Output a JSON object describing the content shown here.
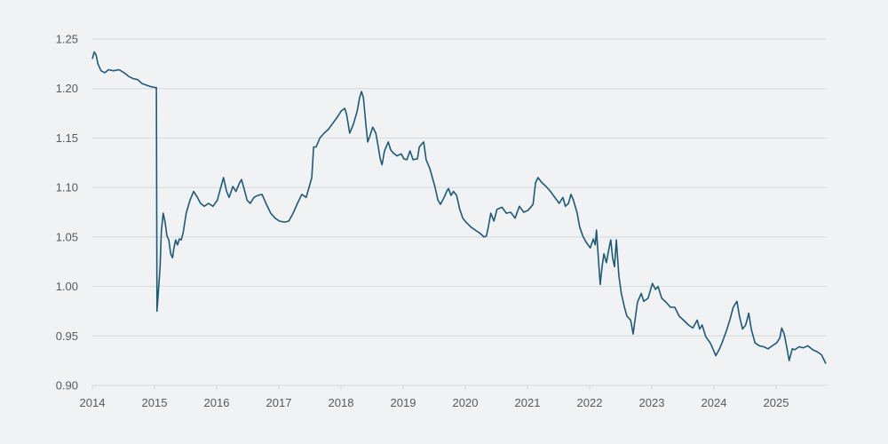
{
  "chart_data": {
    "type": "line",
    "title": "",
    "xlabel": "",
    "ylabel": "",
    "xlim": [
      2014,
      2025.82
    ],
    "ylim": [
      0.9,
      1.25
    ],
    "grid": true,
    "legend": "none",
    "colors": {
      "line": "#1d5a78",
      "grid": "#dadde0",
      "background": "#f0f2f4",
      "text": "#555a5f"
    },
    "x_ticks": [
      "2014",
      "2015",
      "2016",
      "2017",
      "2018",
      "2019",
      "2020",
      "2021",
      "2022",
      "2023",
      "2024",
      "2025"
    ],
    "y_ticks": [
      "0.90",
      "0.95",
      "1.00",
      "1.05",
      "1.10",
      "1.15",
      "1.20",
      "1.25"
    ],
    "series": [
      {
        "x": [
          2014.0,
          2014.03,
          2014.06,
          2014.09,
          2014.14,
          2014.2,
          2014.26,
          2014.34,
          2014.43,
          2014.51,
          2014.59,
          2014.66,
          2014.73,
          2014.8,
          2014.89,
          2014.94,
          2015.01,
          2015.03,
          2015.04,
          2015.06,
          2015.09,
          2015.11,
          2015.14,
          2015.17,
          2015.2,
          2015.23,
          2015.26,
          2015.29,
          2015.31,
          2015.34,
          2015.37,
          2015.4,
          2015.43,
          2015.46,
          2015.51,
          2015.57,
          2015.63,
          2015.69,
          2015.74,
          2015.8,
          2015.87,
          2015.94,
          2016.01,
          2016.07,
          2016.11,
          2016.16,
          2016.2,
          2016.26,
          2016.31,
          2016.37,
          2016.4,
          2016.44,
          2016.49,
          2016.54,
          2016.6,
          2016.66,
          2016.73,
          2016.8,
          2016.87,
          2016.94,
          2017.01,
          2017.09,
          2017.16,
          2017.23,
          2017.3,
          2017.37,
          2017.44,
          2017.49,
          2017.53,
          2017.56,
          2017.6,
          2017.66,
          2017.73,
          2017.8,
          2017.87,
          2017.94,
          2018.0,
          2018.06,
          2018.09,
          2018.14,
          2018.2,
          2018.26,
          2018.3,
          2018.33,
          2018.36,
          2018.4,
          2018.43,
          2018.47,
          2018.51,
          2018.56,
          2018.6,
          2018.63,
          2018.66,
          2018.7,
          2018.76,
          2018.8,
          2018.84,
          2018.9,
          2018.97,
          2019.01,
          2019.06,
          2019.11,
          2019.16,
          2019.23,
          2019.26,
          2019.3,
          2019.33,
          2019.37,
          2019.43,
          2019.47,
          2019.51,
          2019.56,
          2019.6,
          2019.66,
          2019.7,
          2019.73,
          2019.77,
          2019.81,
          2019.86,
          2019.91,
          2019.96,
          2020.01,
          2020.09,
          2020.16,
          2020.23,
          2020.3,
          2020.34,
          2020.37,
          2020.41,
          2020.46,
          2020.51,
          2020.59,
          2020.66,
          2020.73,
          2020.8,
          2020.87,
          2020.94,
          2021.01,
          2021.09,
          2021.13,
          2021.17,
          2021.23,
          2021.3,
          2021.37,
          2021.44,
          2021.51,
          2021.57,
          2021.61,
          2021.66,
          2021.7,
          2021.74,
          2021.8,
          2021.84,
          2021.89,
          2021.94,
          2022.01,
          2022.06,
          2022.09,
          2022.11,
          2022.14,
          2022.17,
          2022.2,
          2022.23,
          2022.27,
          2022.31,
          2022.34,
          2022.37,
          2022.4,
          2022.43,
          2022.47,
          2022.51,
          2022.56,
          2022.6,
          2022.66,
          2022.7,
          2022.73,
          2022.77,
          2022.83,
          2022.87,
          2022.94,
          2023.01,
          2023.06,
          2023.1,
          2023.16,
          2023.23,
          2023.3,
          2023.37,
          2023.44,
          2023.51,
          2023.59,
          2023.66,
          2023.73,
          2023.77,
          2023.81,
          2023.87,
          2023.94,
          2023.99,
          2024.03,
          2024.09,
          2024.13,
          2024.2,
          2024.26,
          2024.31,
          2024.37,
          2024.41,
          2024.46,
          2024.51,
          2024.56,
          2024.6,
          2024.66,
          2024.73,
          2024.8,
          2024.87,
          2024.94,
          2025.01,
          2025.06,
          2025.09,
          2025.13,
          2025.17,
          2025.21,
          2025.26,
          2025.3,
          2025.37,
          2025.44,
          2025.51,
          2025.59,
          2025.66,
          2025.73,
          2025.8
        ],
        "y": [
          1.23,
          1.237,
          1.234,
          1.225,
          1.218,
          1.216,
          1.219,
          1.218,
          1.219,
          1.216,
          1.212,
          1.21,
          1.209,
          1.205,
          1.203,
          1.202,
          1.201,
          1.201,
          0.975,
          0.993,
          1.02,
          1.056,
          1.074,
          1.065,
          1.051,
          1.047,
          1.033,
          1.029,
          1.038,
          1.047,
          1.042,
          1.048,
          1.047,
          1.054,
          1.074,
          1.087,
          1.096,
          1.09,
          1.084,
          1.081,
          1.084,
          1.081,
          1.087,
          1.101,
          1.11,
          1.096,
          1.09,
          1.101,
          1.096,
          1.105,
          1.108,
          1.099,
          1.087,
          1.084,
          1.09,
          1.092,
          1.093,
          1.083,
          1.074,
          1.069,
          1.066,
          1.065,
          1.066,
          1.074,
          1.084,
          1.093,
          1.09,
          1.101,
          1.11,
          1.141,
          1.141,
          1.15,
          1.155,
          1.159,
          1.165,
          1.171,
          1.177,
          1.18,
          1.174,
          1.155,
          1.164,
          1.177,
          1.191,
          1.197,
          1.191,
          1.164,
          1.146,
          1.153,
          1.161,
          1.155,
          1.141,
          1.129,
          1.123,
          1.137,
          1.146,
          1.138,
          1.135,
          1.132,
          1.134,
          1.129,
          1.128,
          1.137,
          1.128,
          1.129,
          1.141,
          1.144,
          1.146,
          1.128,
          1.119,
          1.11,
          1.101,
          1.087,
          1.083,
          1.09,
          1.096,
          1.099,
          1.092,
          1.096,
          1.092,
          1.078,
          1.069,
          1.065,
          1.06,
          1.057,
          1.054,
          1.05,
          1.051,
          1.06,
          1.074,
          1.066,
          1.078,
          1.08,
          1.074,
          1.075,
          1.069,
          1.081,
          1.075,
          1.077,
          1.083,
          1.105,
          1.11,
          1.105,
          1.101,
          1.096,
          1.09,
          1.084,
          1.09,
          1.081,
          1.084,
          1.093,
          1.087,
          1.074,
          1.06,
          1.051,
          1.045,
          1.039,
          1.048,
          1.042,
          1.057,
          1.029,
          1.002,
          1.02,
          1.033,
          1.024,
          1.038,
          1.047,
          1.029,
          1.02,
          1.047,
          1.011,
          0.993,
          0.979,
          0.97,
          0.966,
          0.952,
          0.966,
          0.984,
          0.993,
          0.985,
          0.988,
          1.003,
          0.997,
          1.0,
          0.988,
          0.984,
          0.979,
          0.979,
          0.97,
          0.966,
          0.961,
          0.958,
          0.966,
          0.957,
          0.961,
          0.949,
          0.943,
          0.936,
          0.93,
          0.937,
          0.943,
          0.955,
          0.967,
          0.979,
          0.985,
          0.97,
          0.957,
          0.961,
          0.973,
          0.957,
          0.943,
          0.94,
          0.939,
          0.937,
          0.94,
          0.943,
          0.948,
          0.958,
          0.952,
          0.939,
          0.925,
          0.937,
          0.936,
          0.939,
          0.938,
          0.94,
          0.936,
          0.934,
          0.931,
          0.922
        ]
      }
    ]
  }
}
